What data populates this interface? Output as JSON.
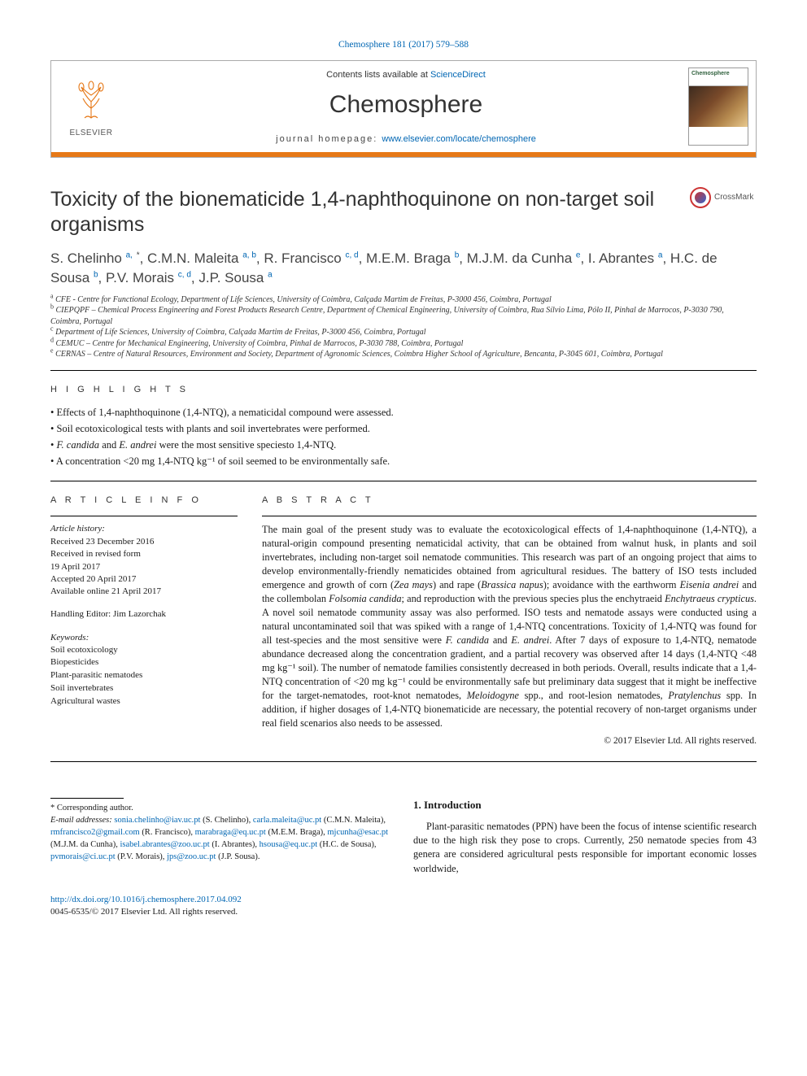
{
  "citation": {
    "journal": "Chemosphere",
    "ref": "181 (2017) 579–588"
  },
  "header": {
    "contents_prefix": "Contents lists available at ",
    "contents_link": "ScienceDirect",
    "journal": "Chemosphere",
    "homepage_prefix": "journal homepage: ",
    "homepage_link": "www.elsevier.com/locate/chemosphere",
    "publisher": "ELSEVIER"
  },
  "title": "Toxicity of the bionematicide 1,4-naphthoquinone on non-target soil organisms",
  "crossmark": "CrossMark",
  "authors_html": "S. Chelinho <sup>a,</sup> <sup class='star'>*</sup>, C.M.N. Maleita <sup>a, b</sup>, R. Francisco <sup>c, d</sup>, M.E.M. Braga <sup>b</sup>, M.J.M. da Cunha <sup>e</sup>, I. Abrantes <sup>a</sup>, H.C. de Sousa <sup>b</sup>, P.V. Morais <sup>c, d</sup>, J.P. Sousa <sup>a</sup>",
  "affiliations": [
    {
      "key": "a",
      "text": "CFE - Centre for Functional Ecology, Department of Life Sciences, University of Coimbra, Calçada Martim de Freitas, P-3000 456, Coimbra, Portugal"
    },
    {
      "key": "b",
      "text": "CIEPQPF – Chemical Process Engineering and Forest Products Research Centre, Department of Chemical Engineering, University of Coimbra, Rua Sílvio Lima, Pólo II, Pinhal de Marrocos, P-3030 790, Coimbra, Portugal"
    },
    {
      "key": "c",
      "text": "Department of Life Sciences, University of Coimbra, Calçada Martim de Freitas, P-3000 456, Coimbra, Portugal"
    },
    {
      "key": "d",
      "text": "CEMUC – Centre for Mechanical Engineering, University of Coimbra, Pinhal de Marrocos, P-3030 788, Coimbra, Portugal"
    },
    {
      "key": "e",
      "text": "CERNAS – Centre of Natural Resources, Environment and Society, Department of Agronomic Sciences, Coimbra Higher School of Agriculture, Bencanta, P-3045 601, Coimbra, Portugal"
    }
  ],
  "hl_head": "H I G H L I G H T S",
  "highlights": [
    "Effects of 1,4-naphthoquinone (1,4-NTQ), a nematicidal compound were assessed.",
    "Soil ecotoxicological tests with plants and soil invertebrates were performed.",
    "F. candida and E. andrei were the most sensitive speciesto 1,4-NTQ.",
    "A concentration <20 mg 1,4-NTQ kg⁻¹ of soil seemed to be environmentally safe."
  ],
  "artinfo_head": "A R T I C L E   I N F O",
  "abstract_head": "A B S T R A C T",
  "history": {
    "label": "Article history:",
    "received": "Received 23 December 2016",
    "revised1": "Received in revised form",
    "revised2": "19 April 2017",
    "accepted": "Accepted 20 April 2017",
    "online": "Available online 21 April 2017"
  },
  "handling": "Handling Editor: Jim Lazorchak",
  "kw_head": "Keywords:",
  "keywords": [
    "Soil ecotoxicology",
    "Biopesticides",
    "Plant-parasitic nematodes",
    "Soil invertebrates",
    "Agricultural wastes"
  ],
  "abstract": "The main goal of the present study was to evaluate the ecotoxicological effects of 1,4-naphthoquinone (1,4-NTQ), a natural-origin compound presenting nematicidal activity, that can be obtained from walnut husk, in plants and soil invertebrates, including non-target soil nematode communities. This research was part of an ongoing project that aims to develop environmentally-friendly nematicides obtained from agricultural residues. The battery of ISO tests included emergence and growth of corn (Zea mays) and rape (Brassica napus); avoidance with the earthworm Eisenia andrei and the collembolan Folsomia candida; and reproduction with the previous species plus the enchytraeid Enchytraeus crypticus. A novel soil nematode community assay was also performed. ISO tests and nematode assays were conducted using a natural uncontaminated soil that was spiked with a range of 1,4-NTQ concentrations. Toxicity of 1,4-NTQ was found for all test-species and the most sensitive were F. candida and E. andrei. After 7 days of exposure to 1,4-NTQ, nematode abundance decreased along the concentration gradient, and a partial recovery was observed after 14 days (1,4-NTQ <48 mg kg⁻¹ soil). The number of nematode families consistently decreased in both periods. Overall, results indicate that a 1,4-NTQ concentration of <20 mg kg⁻¹ could be environmentally safe but preliminary data suggest that it might be ineffective for the target-nematodes, root-knot nematodes, Meloidogyne spp., and root-lesion nematodes, Pratylenchus spp. In addition, if higher dosages of 1,4-NTQ bionematicide are necessary, the potential recovery of non-target organisms under real field scenarios also needs to be assessed.",
  "copyright": "© 2017 Elsevier Ltd. All rights reserved.",
  "corr": {
    "star": "* Corresponding author.",
    "label": "E-mail addresses:",
    "list": [
      {
        "email": "sonia.chelinho@iav.uc.pt",
        "who": " (S. Chelinho), "
      },
      {
        "email": "carla.maleita@uc.pt",
        "who": " (C.M.N. Maleita), "
      },
      {
        "email": "rmfrancisco2@gmail.com",
        "who": " (R. Francisco), "
      },
      {
        "email": "marabraga@eq.uc.pt",
        "who": " (M.E.M. Braga), "
      },
      {
        "email": "mjcunha@esac.pt",
        "who": " (M.J.M. da Cunha), "
      },
      {
        "email": "isabel.abrantes@zoo.uc.pt",
        "who": " (I. Abrantes), "
      },
      {
        "email": "hsousa@eq.uc.pt",
        "who": " (H.C. de Sousa), "
      },
      {
        "email": "pvmorais@ci.uc.pt",
        "who": " (P.V. Morais), "
      },
      {
        "email": "jps@zoo.uc.pt",
        "who": " (J.P. Sousa)."
      }
    ]
  },
  "intro": {
    "head": "1.  Introduction",
    "body": "Plant-parasitic nematodes (PPN) have been the focus of intense scientific research due to the high risk they pose to crops. Currently, 250 nematode species from 43 genera are considered agricultural pests responsible for important economic losses worldwide,"
  },
  "doi": {
    "link": "http://dx.doi.org/10.1016/j.chemosphere.2017.04.092",
    "issn": "0045-6535/© 2017 Elsevier Ltd. All rights reserved."
  },
  "colors": {
    "link": "#0066b3",
    "orange": "#e67817",
    "text": "#1a1a1a"
  }
}
